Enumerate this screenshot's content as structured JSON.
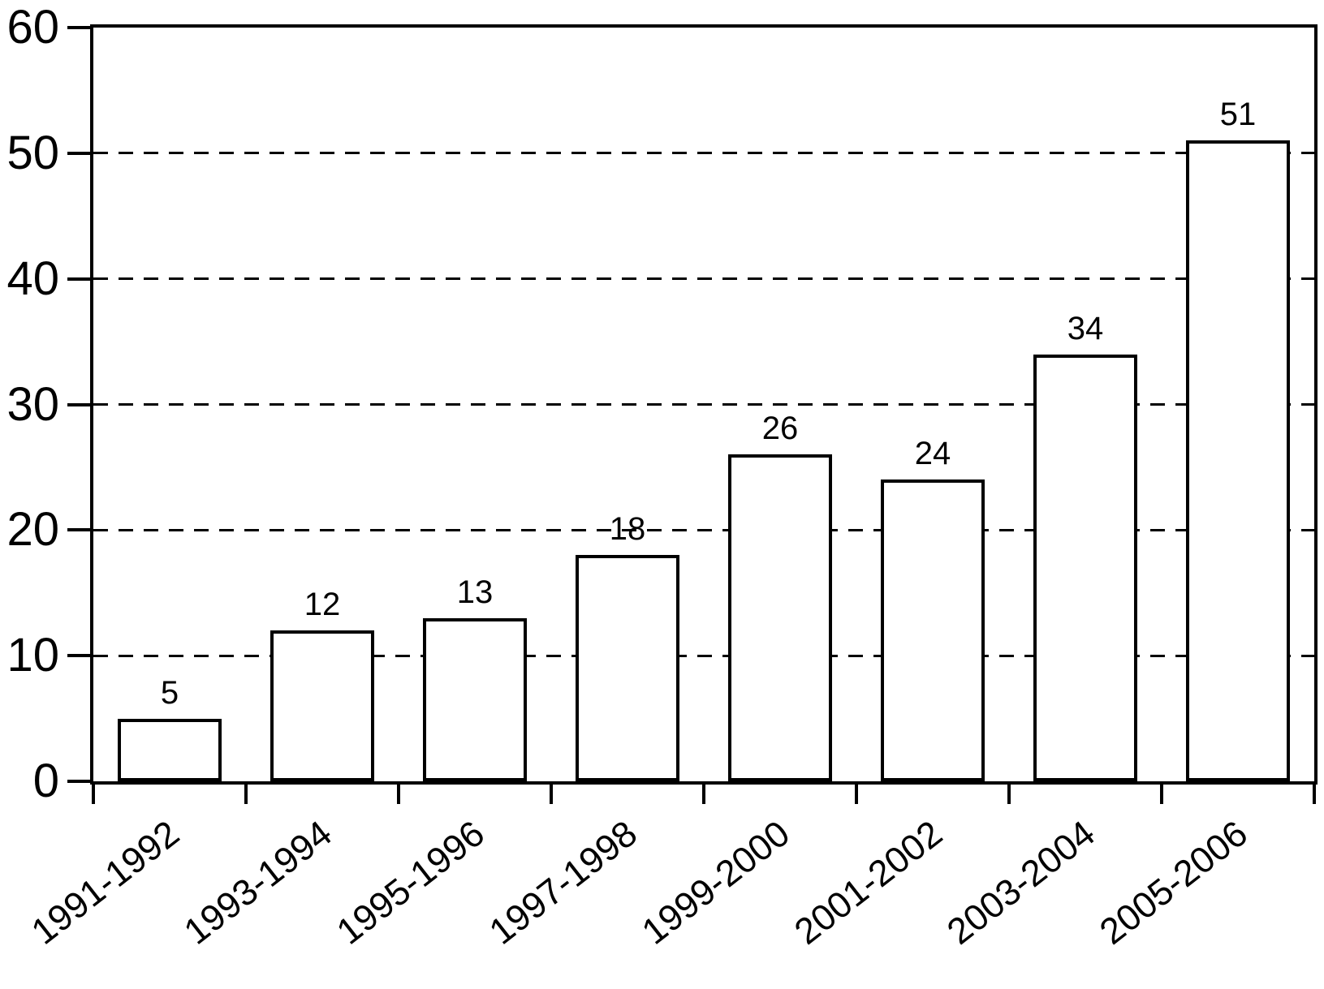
{
  "chart_data": {
    "type": "bar",
    "title": "",
    "xlabel": "",
    "ylabel": "",
    "categories": [
      "1991-1992",
      "1993-1994",
      "1995-1996",
      "1997-1998",
      "1999-2000",
      "2001-2002",
      "2003-2004",
      "2005-2006"
    ],
    "values": [
      5,
      12,
      13,
      18,
      26,
      24,
      34,
      51
    ],
    "bar_labels": [
      "5",
      "12",
      "13",
      "18",
      "26",
      "24",
      "34",
      "51"
    ],
    "ylim": [
      0,
      60
    ],
    "y_ticks": [
      0,
      10,
      20,
      30,
      40,
      50,
      60
    ],
    "y_tick_labels": [
      "0",
      "10",
      "20",
      "30",
      "40",
      "50",
      "60"
    ],
    "gridline_values": [
      10,
      20,
      30,
      40,
      50
    ],
    "grid_style": "dashed",
    "legend": null,
    "colors": {
      "bar_fill": "#ffffff",
      "line": "#000000",
      "text": "#000000",
      "background": "#ffffff"
    }
  }
}
